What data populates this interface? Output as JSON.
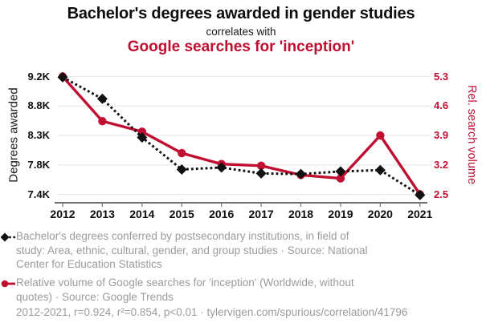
{
  "header": {
    "title": "Bachelor's degrees awarded in gender studies",
    "connector": "correlates with",
    "subtitle": "Google searches for 'inception'"
  },
  "colors": {
    "accent_red": "#c00f31",
    "series_black": "#111111",
    "legend_gray": "#9b9b9b",
    "gridline": "#e8e8e8",
    "axis_line": "#444444"
  },
  "chart_data": {
    "type": "line",
    "title": "Bachelor's degrees awarded in gender studies vs Google searches for 'inception'",
    "x": [
      "2012",
      "2013",
      "2014",
      "2015",
      "2016",
      "2017",
      "2018",
      "2019",
      "2020",
      "2021"
    ],
    "series": [
      {
        "name": "Bachelor's degrees in gender studies (degrees awarded)",
        "axis": "left",
        "style": "dashed",
        "marker": "diamond",
        "color": "#111111",
        "values": [
          9190,
          8860,
          8270,
          7780,
          7810,
          7720,
          7710,
          7750,
          7770,
          7390
        ]
      },
      {
        "name": "Google searches for 'inception' (rel. search volume)",
        "axis": "right",
        "style": "solid",
        "marker": "circle",
        "color": "#c00f31",
        "values": [
          5.3,
          4.24,
          3.99,
          3.48,
          3.22,
          3.18,
          2.96,
          2.88,
          3.9,
          2.5
        ]
      }
    ],
    "axes": {
      "left": {
        "label": "Degrees awarded",
        "ticks": [
          "9.2K",
          "8.8K",
          "8.3K",
          "7.8K",
          "7.4K"
        ],
        "range": [
          7400,
          9200
        ]
      },
      "right": {
        "label": "Rel. search volume",
        "ticks": [
          "5.3",
          "4.6",
          "3.9",
          "3.2",
          "2.5"
        ],
        "range": [
          2.5,
          5.3
        ]
      }
    },
    "grid": "horizontal",
    "legend_position": "bottom"
  },
  "legend": {
    "items": [
      {
        "marker": "black-diamond-dashed",
        "lines": [
          "Bachelor's degrees conferred by postsecondary institutions, in field of",
          "study: Area, ethnic, cultural, gender, and group studies · Source: National",
          "Center for Education Statistics"
        ]
      },
      {
        "marker": "red-circle-solid",
        "lines": [
          "Relative volume of Google searches for 'inception' (Worldwide, without",
          "quotes) · Source: Google Trends"
        ]
      }
    ]
  },
  "footer": {
    "stats": "2012-2021, r=0.924, r²=0.854, p<0.01 · tylervigen.com/spurious/correlation/41796"
  }
}
